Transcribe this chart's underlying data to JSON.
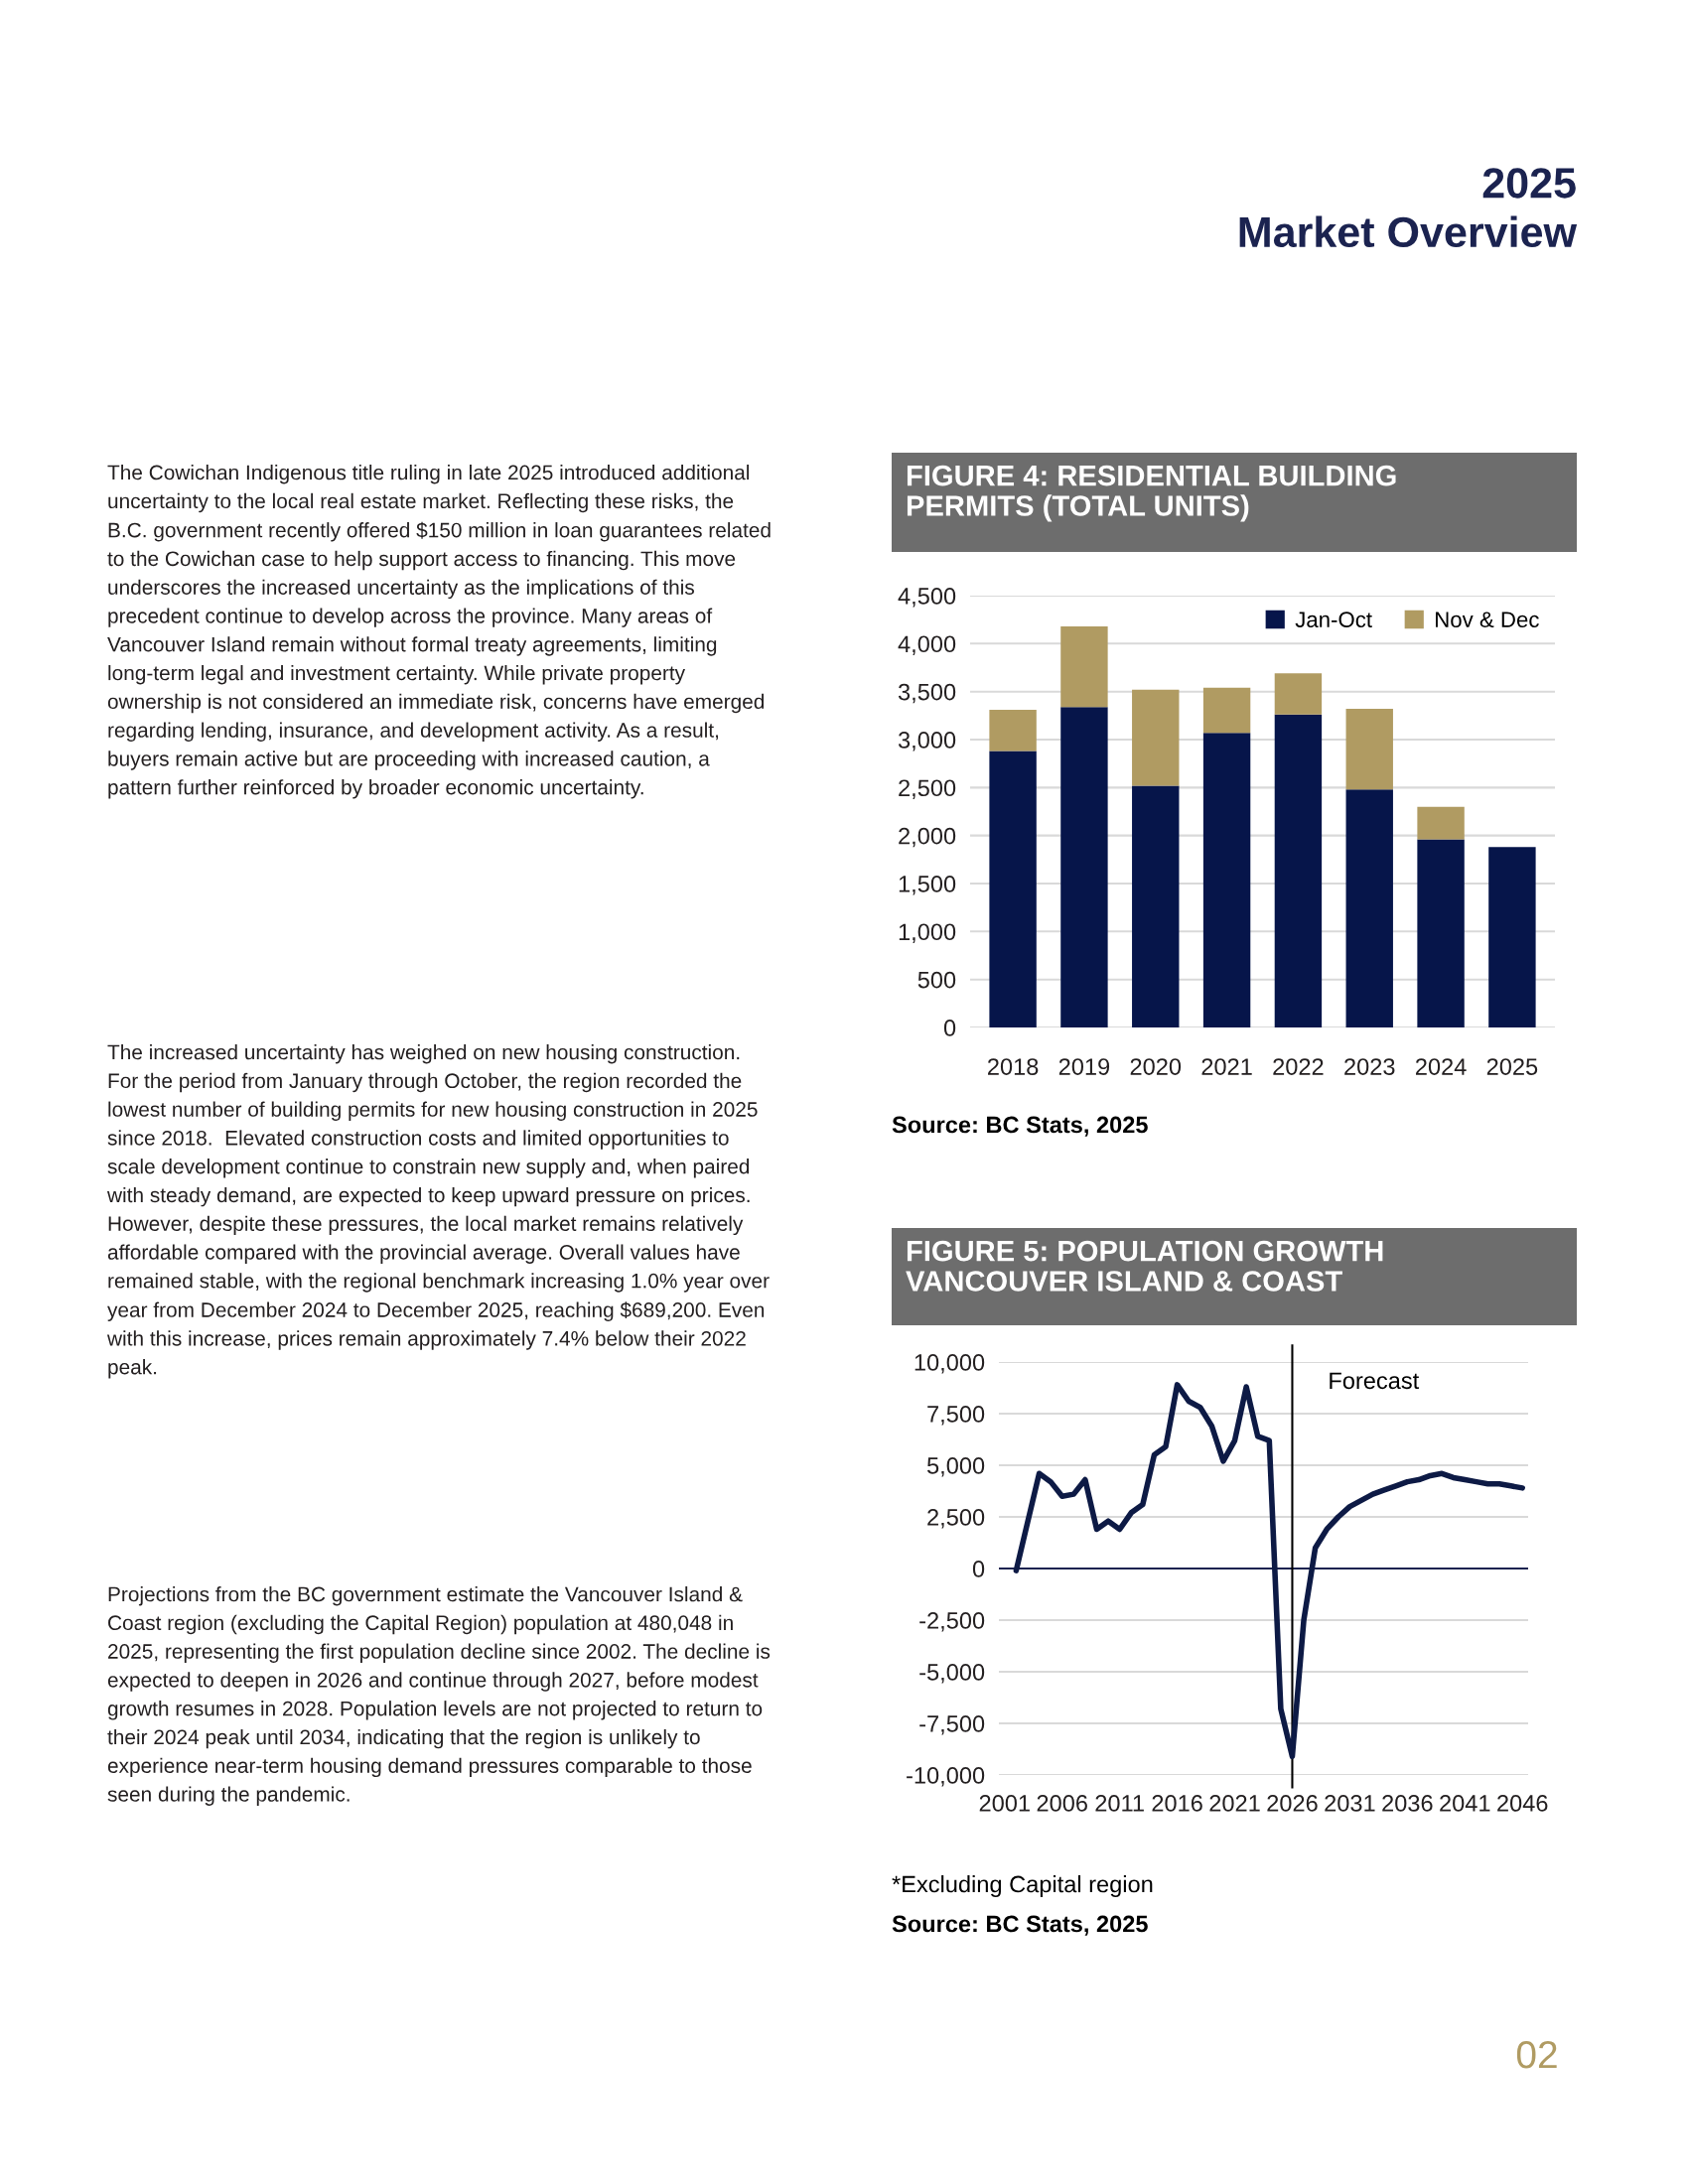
{
  "chart_data": [
    {
      "type": "bar",
      "title": "FIGURE 4: RESIDENTIAL BUILDING PERMITS (TOTAL UNITS)",
      "categories": [
        "2018",
        "2019",
        "2020",
        "2021",
        "2022",
        "2023",
        "2024",
        "2025"
      ],
      "series": [
        {
          "name": "Jan-Oct",
          "color": "#06154a",
          "values": [
            2880,
            3340,
            2520,
            3070,
            3260,
            2480,
            1960,
            1880
          ]
        },
        {
          "name": "Nov & Dec",
          "color": "#b09b62",
          "values": [
            430,
            840,
            1000,
            470,
            430,
            840,
            340,
            null
          ]
        }
      ],
      "stacked": true,
      "ylim": [
        0,
        4500
      ],
      "yticks": [
        0,
        500,
        {
          "value": 1000,
          "label": "1,000"
        },
        {
          "value": 1500,
          "label": "1,500"
        },
        {
          "value": 2000,
          "label": "2,000"
        },
        {
          "value": 2500,
          "label": "2,500"
        },
        {
          "value": 3000,
          "label": "3,000"
        },
        {
          "value": 3500,
          "label": "3,500"
        },
        {
          "value": 4000,
          "label": "4,000"
        },
        {
          "value": 4500,
          "label": "4,500"
        }
      ],
      "grid": "y",
      "legend": "top right",
      "annotations": [
        "Source: BC Stats, 2025",
        "2025\nMarket Overview",
        "The Cowichan Indigenous title ruling in late 2025 introduced additional uncertainty to the local real estate market. Reflecting these risks, the B.C. government recently offered $150 million in loan guarantees related to the Cowichan case to help support access to financing. This move underscores the increased uncertainty as the implications of this precedent continue to develop across the province. Many areas of Vancouver Island remain without formal treaty agreements, limiting long-term legal and investment certainty. While private property ownership is not considered an immediate risk, concerns have emerged regarding lending, insurance, and development activity. As a result, buyers remain active but are proceeding with increased caution, a pattern further reinforced by broader economic uncertainty.",
        "The increased uncertainty has weighed on new housing construction. For the period from January through October, the region recorded the lowest number of building permits for new housing construction in 2025 since 2018.  Elevated construction costs and limited opportunities to scale development continue to constrain new supply and, when paired with steady demand, are expected to keep upward pressure on prices. However, despite these pressures, the local market remains relatively affordable compared with the provincial average. Overall values have remained stable, with the regional benchmark increasing 1.0% year over year from December 2024 to December 2025, reaching $689,200. Even with this increase, prices remain approximately 7.4% below their 2022 peak.",
        "Projections from the BC government estimate the Vancouver Island & Coast region (excluding the Capital Region) population at 480,048 in 2025, representing the first population decline since 2002. The decline is expected to deepen in 2026 and continue through 2027, before modest growth resumes in 2028. Population levels are not projected to return to their 2024 peak until 2034, indicating that the region is unlikely to experience near-term housing demand pressures comparable to those seen during the pandemic.",
        "02"
      ]
    },
    {
      "type": "line",
      "title": "FIGURE 5: POPULATION GROWTH VANCOUVER ISLAND & COAST",
      "x": [
        2002,
        2003,
        2004,
        2005,
        2006,
        2007,
        2008,
        2009,
        2010,
        2011,
        2012,
        2013,
        2014,
        2015,
        2016,
        2017,
        2018,
        2019,
        2020,
        2021,
        2022,
        2023,
        2024,
        2025,
        2026,
        2027,
        2028,
        2029,
        2030,
        2031,
        2032,
        2033,
        2034,
        2035,
        2036,
        2037,
        2038,
        2039,
        2040,
        2041,
        2042,
        2043,
        2044,
        2045,
        2046
      ],
      "series": [
        {
          "color": "#0d1a45",
          "values": [
            -100,
            2250,
            4600,
            4200,
            3500,
            3600,
            4300,
            1900,
            2300,
            1900,
            2700,
            3100,
            5500,
            5900,
            8900,
            8100,
            7800,
            6900,
            5200,
            6200,
            8800,
            6400,
            6200,
            -6800,
            -9100,
            -2500,
            1000,
            1900,
            2500,
            3000,
            3300,
            3600,
            3800,
            4000,
            4200,
            4300,
            4500,
            4600,
            4400,
            4300,
            4200,
            4100,
            4100,
            4000,
            3900
          ]
        }
      ],
      "xlim": [
        2000.5,
        2046.5
      ],
      "xticks": [
        2001,
        2006,
        2011,
        2016,
        2021,
        2026,
        2031,
        2036,
        2041,
        2046
      ],
      "ylim": [
        -10000,
        10000
      ],
      "yticks": [
        {
          "value": -10000,
          "label": "-10,000"
        },
        {
          "value": -7500,
          "label": "-7,500"
        },
        {
          "value": -5000,
          "label": "-5,000"
        },
        {
          "value": -2500,
          "label": "-2,500"
        },
        0,
        {
          "value": 2500,
          "label": "2,500"
        },
        {
          "value": 5000,
          "label": "5,000"
        },
        {
          "value": 7500,
          "label": "7,500"
        },
        {
          "value": 10000,
          "label": "10,000"
        }
      ],
      "grid": "y",
      "line_style": "solid",
      "ref_lines": [
        {
          "axis": "x",
          "value": 2026,
          "label": "Forecast",
          "color": "#000000"
        }
      ],
      "annotations": [
        "*Excluding Capital region",
        "Source: BC Stats, 2025"
      ]
    }
  ]
}
